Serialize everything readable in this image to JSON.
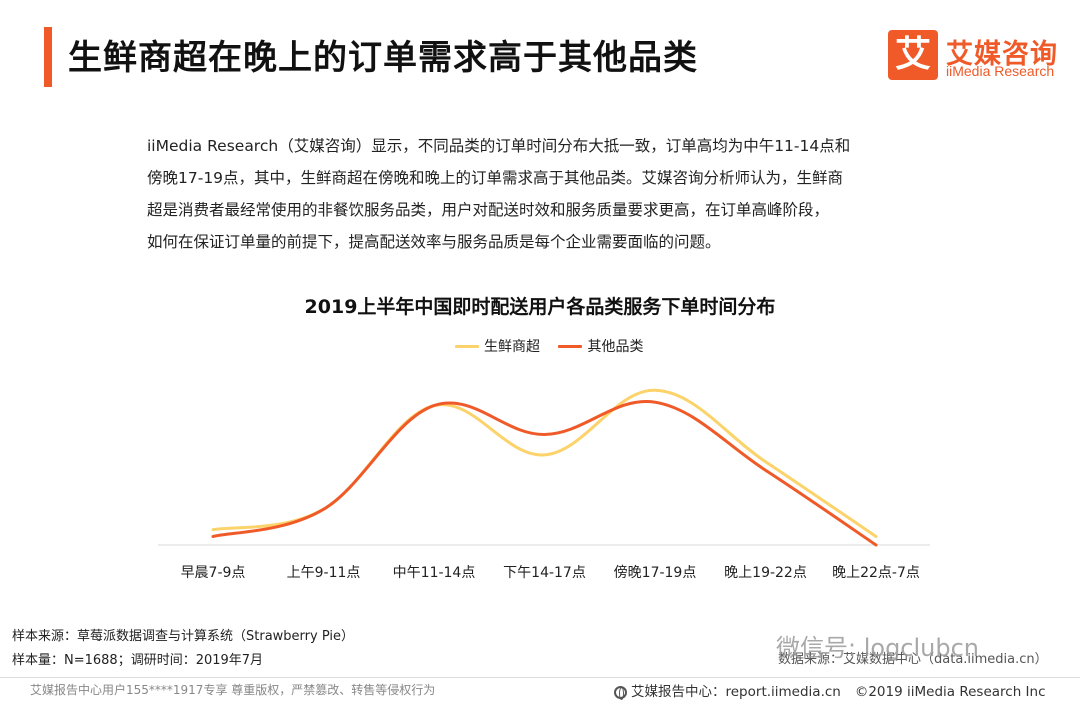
{
  "header": {
    "title": "生鲜商超在晚上的订单需求高于其他品类",
    "logo": {
      "mark": "艾",
      "cn": "艾媒咨询",
      "en": "iiMedia Research"
    }
  },
  "intro_lines": [
    "iiMedia Research（艾媒咨询）显示，不同品类的订单时间分布大抵一致，订单高均为中午11-14点和",
    "傍晚17-19点，其中，生鲜商超在傍晚和晚上的订单需求高于其他品类。艾媒咨询分析师认为，生鲜商",
    "超是消费者最经常使用的非餐饮服务品类，用户对配送时效和服务质量要求更高，在订单高峰阶段，",
    "如何在保证订单量的前提下，提高配送效率与服务品质是每个企业需要面临的问题。"
  ],
  "chart_data": {
    "type": "line",
    "title": "2019上半年中国即时配送用户各品类服务下单时间分布",
    "categories": [
      "早晨7-9点",
      "上午9-11点",
      "中午11-14点",
      "下午14-17点",
      "傍晚17-19点",
      "晚上19-22点",
      "晚上22点-7点"
    ],
    "series": [
      {
        "name": "生鲜商超",
        "color": "#fcd36a",
        "values": [
          0.09,
          0.21,
          0.82,
          0.53,
          0.91,
          0.49,
          0.05
        ]
      },
      {
        "name": "其他品类",
        "color": "#ef5a28",
        "values": [
          0.05,
          0.21,
          0.82,
          0.65,
          0.84,
          0.44,
          0.0
        ]
      }
    ],
    "ylim": [
      0,
      1
    ],
    "axis_visible": false,
    "grid": false,
    "legend_position": "top-center",
    "smooth": true
  },
  "footer": {
    "source": "样本来源：草莓派数据调查与计算系统（Strawberry Pie）",
    "sample": "样本量：N=1688；调研时间：2019年7月",
    "data_source": "数据来源：艾媒数据中心（data.iimedia.cn）",
    "watermark": "微信号: logclubcn",
    "left_notice": "艾媒报告中心用户155****1917专享 尊重版权，严禁篡改、转售等侵权行为",
    "report_site": "艾媒报告中心：report.iimedia.cn",
    "copyright": "©2019  iiMedia Research  Inc"
  }
}
